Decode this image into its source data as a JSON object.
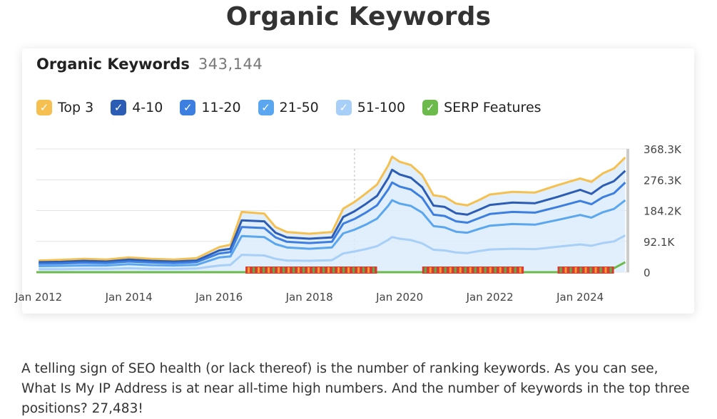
{
  "page": {
    "title": "Organic Keywords",
    "paragraph": "A telling sign of SEO health (or lack thereof) is the number of ranking keywords. As you can see, What Is My IP Address is at near all-time high numbers. And the number of keywords in the top three positions? 27,483!"
  },
  "card": {
    "title": "Organic Keywords",
    "total": "343,144",
    "check_icon": "check-icon"
  },
  "colors": {
    "top3": "#f5c050",
    "pos4_10": "#2c5db5",
    "pos11_20": "#3d7fe0",
    "pos21_50": "#5aa6ef",
    "pos51_100": "#a7cff7",
    "serp": "#6cba4c",
    "area_fill": "#dcebfb",
    "markers_red": "#d93a31",
    "markers_green": "#5bb04a",
    "markers_orange": "#f0a030"
  },
  "chart_data": {
    "type": "area",
    "title": "Organic Keywords",
    "x": [
      "2012-01",
      "2012-07",
      "2013-01",
      "2013-07",
      "2014-01",
      "2014-07",
      "2015-01",
      "2015-07",
      "2016-01",
      "2016-04",
      "2016-07",
      "2017-01",
      "2017-04",
      "2017-07",
      "2018-01",
      "2018-07",
      "2018-10",
      "2019-01",
      "2019-04",
      "2019-07",
      "2019-10",
      "2019-11",
      "2020-01",
      "2020-04",
      "2020-07",
      "2020-10",
      "2021-01",
      "2021-04",
      "2021-07",
      "2021-10",
      "2022-01",
      "2022-07",
      "2023-01",
      "2023-07",
      "2024-01",
      "2024-04",
      "2024-07",
      "2024-10",
      "2025-01"
    ],
    "series": [
      {
        "name": "Top 3",
        "values": [
          35,
          37,
          40,
          38,
          44,
          40,
          38,
          42,
          75,
          82,
          180,
          175,
          135,
          120,
          115,
          120,
          190,
          210,
          235,
          262,
          320,
          345,
          330,
          320,
          290,
          230,
          225,
          205,
          200,
          215,
          232,
          240,
          238,
          260,
          280,
          270,
          295,
          310,
          343
        ]
      },
      {
        "name": "4-10",
        "values": [
          30,
          31,
          34,
          32,
          38,
          34,
          32,
          35,
          65,
          70,
          155,
          152,
          118,
          104,
          100,
          104,
          165,
          182,
          204,
          228,
          282,
          306,
          292,
          282,
          254,
          199,
          195,
          176,
          172,
          186,
          201,
          208,
          206,
          225,
          246,
          234,
          258,
          272,
          303
        ]
      },
      {
        "name": "11-20",
        "values": [
          25,
          26,
          28,
          27,
          32,
          29,
          27,
          30,
          56,
          60,
          135,
          132,
          104,
          91,
          87,
          91,
          145,
          159,
          178,
          200,
          248,
          268,
          256,
          247,
          222,
          172,
          168,
          152,
          148,
          161,
          174,
          180,
          178,
          195,
          213,
          203,
          224,
          236,
          268
        ]
      },
      {
        "name": "21-50",
        "values": [
          18,
          19,
          20,
          20,
          24,
          21,
          20,
          22,
          44,
          47,
          108,
          105,
          84,
          74,
          70,
          74,
          116,
          127,
          142,
          160,
          199,
          215,
          205,
          198,
          178,
          138,
          134,
          121,
          118,
          129,
          139,
          144,
          142,
          156,
          171,
          163,
          179,
          189,
          215
        ]
      },
      {
        "name": "51-100",
        "values": [
          9,
          9,
          10,
          10,
          12,
          10,
          10,
          11,
          20,
          22,
          52,
          50,
          40,
          35,
          34,
          36,
          56,
          62,
          69,
          78,
          97,
          105,
          100,
          96,
          86,
          67,
          65,
          59,
          57,
          63,
          68,
          70,
          69,
          76,
          83,
          79,
          87,
          92,
          110
        ]
      },
      {
        "name": "SERP Features",
        "values": [
          0,
          0,
          0,
          0,
          0,
          0,
          0,
          0,
          0,
          0,
          0,
          0,
          0,
          0,
          0,
          0,
          0,
          0,
          0,
          0,
          0,
          0,
          0,
          0,
          0,
          0,
          0,
          0,
          0,
          0,
          0,
          0,
          0,
          0,
          0,
          0,
          5,
          12,
          30
        ]
      }
    ],
    "ylim": [
      0,
      368.3
    ],
    "y_ticks": [
      "368.3K",
      "276.3K",
      "184.2K",
      "92.1K",
      "0"
    ],
    "x_ticks": [
      "Jan 2012",
      "Jan 2014",
      "Jan 2016",
      "Jan 2018",
      "Jan 2020",
      "Jan 2022",
      "Jan 2024"
    ],
    "legend": [
      "Top 3",
      "4-10",
      "11-20",
      "21-50",
      "51-100",
      "SERP Features"
    ],
    "legend_position": "top-left",
    "grid": true
  }
}
